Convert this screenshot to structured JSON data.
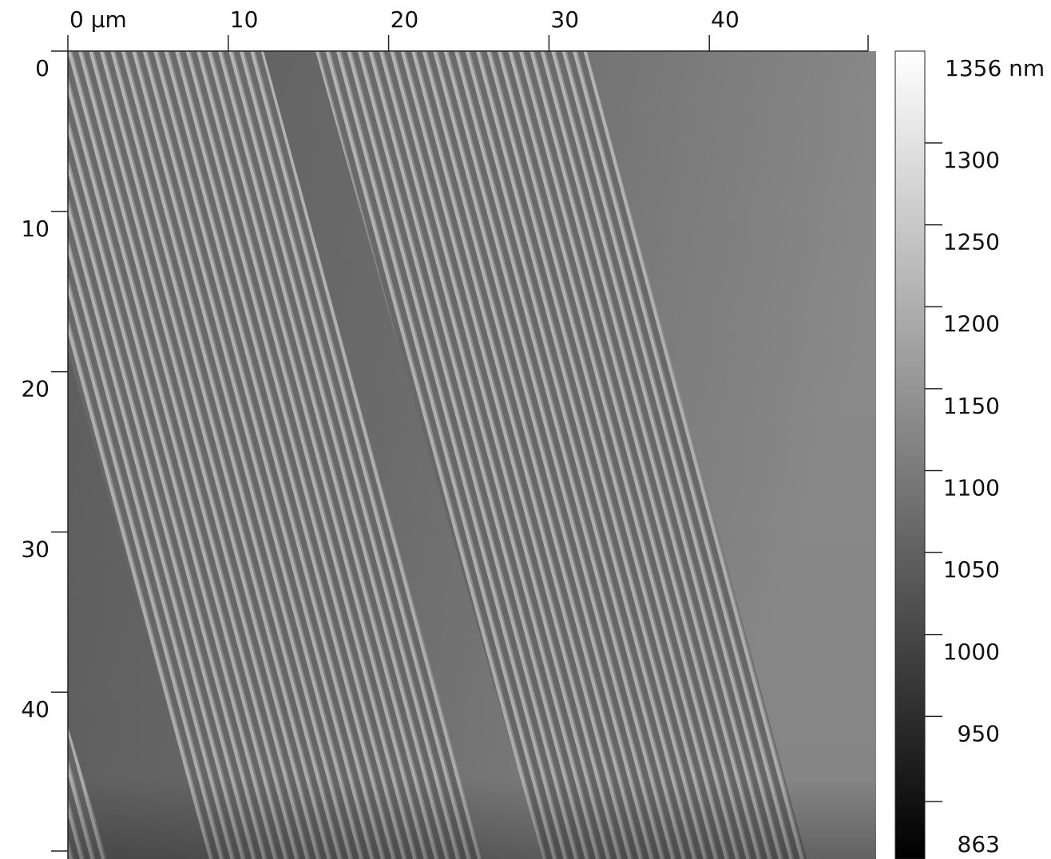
{
  "chart_data": {
    "type": "image",
    "xlim": [
      0,
      50.4
    ],
    "ylim": [
      0,
      50.4
    ],
    "xticks": [
      {
        "value": 0,
        "label": "0 µm"
      },
      10,
      20,
      30,
      40
    ],
    "yticks": [
      0,
      10,
      20,
      30,
      40
    ],
    "zlim": [
      863,
      1356
    ],
    "zticks": [
      863,
      950,
      1000,
      1050,
      1100,
      1150,
      1200,
      1250,
      1300,
      {
        "value": 1356,
        "label": "1356 nm"
      }
    ]
  }
}
